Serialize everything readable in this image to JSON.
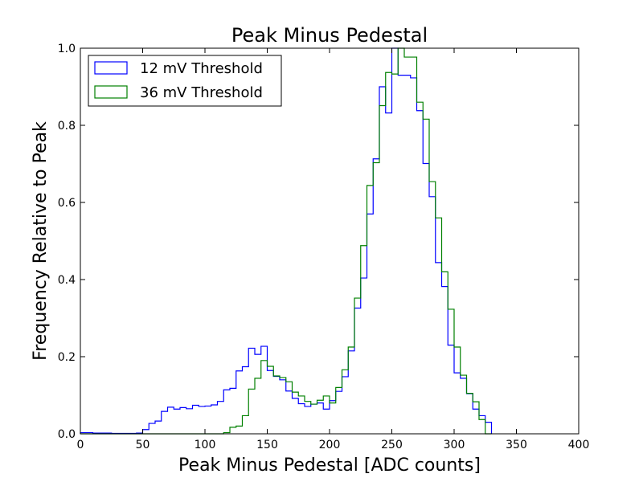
{
  "chart_data": {
    "type": "step-histogram",
    "title": "Peak Minus Pedestal",
    "xlabel": "Peak Minus Pedestal [ADC counts]",
    "ylabel": "Frequency Relative to Peak",
    "xlim": [
      0,
      400
    ],
    "ylim": [
      0,
      1.0
    ],
    "xticks": [
      "0",
      "50",
      "100",
      "150",
      "200",
      "250",
      "300",
      "350",
      "400"
    ],
    "yticks": [
      "0.0",
      "0.2",
      "0.4",
      "0.6",
      "0.8",
      "1.0"
    ],
    "legend_position": "top-left",
    "grid": false,
    "bin_edges_start": 0,
    "bin_width": 5,
    "series": [
      {
        "name": "12 mV Threshold",
        "color": "#0000ff",
        "values": [
          0.003,
          0.003,
          0.002,
          0.002,
          0.002,
          0.001,
          0.001,
          0.001,
          0.001,
          0.002,
          0.011,
          0.027,
          0.033,
          0.058,
          0.069,
          0.064,
          0.068,
          0.065,
          0.074,
          0.071,
          0.072,
          0.075,
          0.084,
          0.114,
          0.118,
          0.163,
          0.174,
          0.222,
          0.206,
          0.227,
          0.164,
          0.149,
          0.14,
          0.111,
          0.092,
          0.078,
          0.071,
          0.077,
          0.08,
          0.064,
          0.086,
          0.11,
          0.148,
          0.215,
          0.326,
          0.404,
          0.57,
          0.713,
          0.9,
          0.832,
          1.0,
          0.93,
          0.93,
          0.923,
          0.838,
          0.701,
          0.615,
          0.444,
          0.382,
          0.23,
          0.158,
          0.144,
          0.104,
          0.064,
          0.047,
          0.03
        ]
      },
      {
        "name": "36 mV Threshold",
        "color": "#008000",
        "values": [
          0.0,
          0.0,
          0.0,
          0.0,
          0.0,
          0.0,
          0.0,
          0.0,
          0.0,
          0.0,
          0.0,
          0.0,
          0.0,
          0.0,
          0.0,
          0.0,
          0.0,
          0.0,
          0.0,
          0.0,
          0.0,
          0.0,
          0.0,
          0.003,
          0.017,
          0.02,
          0.047,
          0.116,
          0.144,
          0.19,
          0.175,
          0.15,
          0.146,
          0.135,
          0.108,
          0.098,
          0.084,
          0.077,
          0.087,
          0.098,
          0.08,
          0.12,
          0.166,
          0.225,
          0.352,
          0.488,
          0.644,
          0.703,
          0.851,
          0.937,
          0.933,
          1.0,
          0.977,
          0.977,
          0.86,
          0.816,
          0.654,
          0.56,
          0.42,
          0.323,
          0.225,
          0.152,
          0.105,
          0.083,
          0.037,
          0.0
        ]
      }
    ]
  }
}
